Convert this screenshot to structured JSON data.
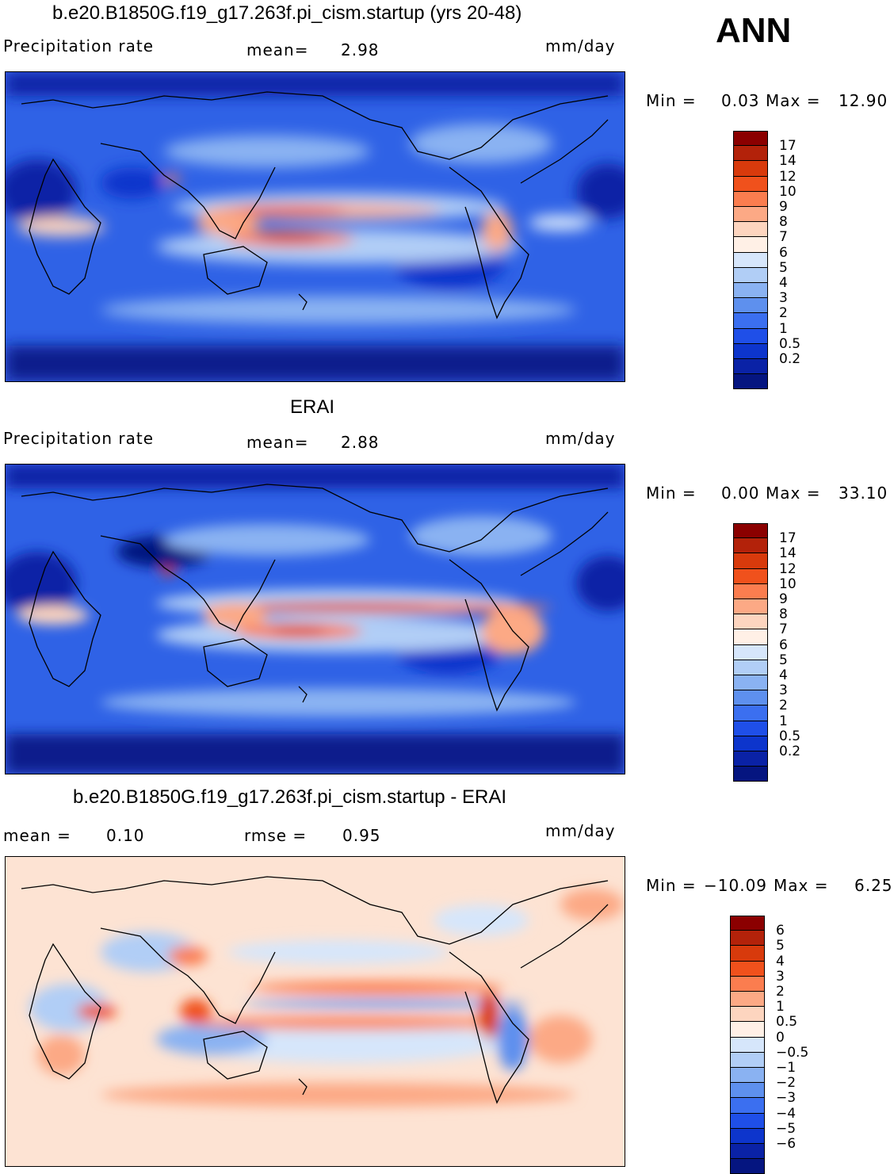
{
  "season": "ANN",
  "units": "mm/day",
  "panels": [
    {
      "title": "b.e20.B1850G.f19_g17.263f.pi_cism.startup (yrs 20-48)",
      "variable": "Precipitation rate",
      "stat1_label": "mean=",
      "stat1_value": "2.98",
      "min_label": "Min =",
      "min_value": "0.03",
      "max_label": "Max =",
      "max_value": "12.90",
      "colorbar": {
        "colors": [
          "#8b0000",
          "#b3220a",
          "#d83a0c",
          "#f0511c",
          "#fb7d4f",
          "#fca985",
          "#fdd5bf",
          "#fff0e6",
          "#d6e6fb",
          "#b1cef6",
          "#8ab2f2",
          "#5e90ee",
          "#3b6ff0",
          "#1f4fe8",
          "#0d35cc",
          "#0a22a6",
          "#051580"
        ],
        "labels": [
          "17",
          "14",
          "12",
          "10",
          "9",
          "8",
          "7",
          "6",
          "5",
          "4",
          "3",
          "2",
          "1",
          "0.5",
          "0.2"
        ]
      }
    },
    {
      "title": "ERAI",
      "variable": "Precipitation rate",
      "stat1_label": "mean=",
      "stat1_value": "2.88",
      "min_label": "Min =",
      "min_value": "0.00",
      "max_label": "Max =",
      "max_value": "33.10",
      "colorbar": {
        "colors": [
          "#8b0000",
          "#b3220a",
          "#d83a0c",
          "#f0511c",
          "#fb7d4f",
          "#fca985",
          "#fdd5bf",
          "#fff0e6",
          "#d6e6fb",
          "#b1cef6",
          "#8ab2f2",
          "#5e90ee",
          "#3b6ff0",
          "#1f4fe8",
          "#0d35cc",
          "#0a22a6",
          "#051580"
        ],
        "labels": [
          "17",
          "14",
          "12",
          "10",
          "9",
          "8",
          "7",
          "6",
          "5",
          "4",
          "3",
          "2",
          "1",
          "0.5",
          "0.2"
        ]
      }
    },
    {
      "title": "b.e20.B1850G.f19_g17.263f.pi_cism.startup - ERAI",
      "stat1_label": "mean =",
      "stat1_value": "0.10",
      "stat2_label": "rmse =",
      "stat2_value": "0.95",
      "min_label": "Min =",
      "min_value": "−10.09",
      "max_label": "Max =",
      "max_value": "6.25",
      "colorbar": {
        "colors": [
          "#8b0000",
          "#b3220a",
          "#d83a0c",
          "#f0511c",
          "#fb7d4f",
          "#fca985",
          "#fdd5bf",
          "#fff0e6",
          "#d6e6fb",
          "#b1cef6",
          "#8ab2f2",
          "#5e90ee",
          "#3b6ff0",
          "#1f4fe8",
          "#0d35cc",
          "#0a22a6",
          "#051580"
        ],
        "labels": [
          "6",
          "5",
          "4",
          "3",
          "2",
          "1",
          "0.5",
          "0",
          "−0.5",
          "−1",
          "−2",
          "−3",
          "−4",
          "−5",
          "−6"
        ]
      }
    }
  ],
  "chart_data": [
    {
      "type": "heatmap",
      "title": "b.e20.B1850G.f19_g17.263f.pi_cism.startup (yrs 20-48)",
      "variable": "Precipitation rate",
      "units": "mm/day",
      "mean": 2.98,
      "min": 0.03,
      "max": 12.9,
      "contour_levels": [
        0.2,
        0.5,
        1,
        2,
        3,
        4,
        5,
        6,
        7,
        8,
        9,
        10,
        12,
        14,
        17
      ]
    },
    {
      "type": "heatmap",
      "title": "ERAI",
      "variable": "Precipitation rate",
      "units": "mm/day",
      "mean": 2.88,
      "min": 0.0,
      "max": 33.1,
      "contour_levels": [
        0.2,
        0.5,
        1,
        2,
        3,
        4,
        5,
        6,
        7,
        8,
        9,
        10,
        12,
        14,
        17
      ]
    },
    {
      "type": "heatmap",
      "title": "b.e20.B1850G.f19_g17.263f.pi_cism.startup - ERAI",
      "units": "mm/day",
      "mean": 0.1,
      "rmse": 0.95,
      "min": -10.09,
      "max": 6.25,
      "contour_levels": [
        -6,
        -5,
        -4,
        -3,
        -2,
        -1,
        -0.5,
        0,
        0.5,
        1,
        2,
        3,
        4,
        5,
        6
      ]
    }
  ]
}
